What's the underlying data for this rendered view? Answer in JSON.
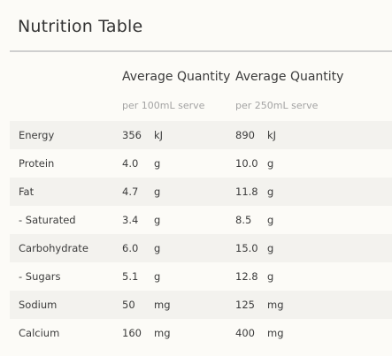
{
  "title": "Nutrition Table",
  "columns": [
    {
      "heading": "Average Quantity",
      "subheading": "per 100mL serve"
    },
    {
      "heading": "Average Quantity",
      "subheading": "per 250mL serve"
    }
  ],
  "rows": [
    {
      "name": "Energy",
      "per100": {
        "value": "356",
        "unit": "kJ"
      },
      "per250": {
        "value": "890",
        "unit": "kJ"
      }
    },
    {
      "name": "Protein",
      "per100": {
        "value": "4.0",
        "unit": "g"
      },
      "per250": {
        "value": "10.0",
        "unit": "g"
      }
    },
    {
      "name": "Fat",
      "per100": {
        "value": "4.7",
        "unit": "g"
      },
      "per250": {
        "value": "11.8",
        "unit": "g"
      }
    },
    {
      "name": "- Saturated",
      "per100": {
        "value": "3.4",
        "unit": "g"
      },
      "per250": {
        "value": "8.5",
        "unit": "g"
      }
    },
    {
      "name": "Carbohydrate",
      "per100": {
        "value": "6.0",
        "unit": "g"
      },
      "per250": {
        "value": "15.0",
        "unit": "g"
      }
    },
    {
      "name": "- Sugars",
      "per100": {
        "value": "5.1",
        "unit": "g"
      },
      "per250": {
        "value": "12.8",
        "unit": "g"
      }
    },
    {
      "name": "Sodium",
      "per100": {
        "value": "50",
        "unit": "mg"
      },
      "per250": {
        "value": "125",
        "unit": "mg"
      }
    },
    {
      "name": "Calcium",
      "per100": {
        "value": "160",
        "unit": "mg"
      },
      "per250": {
        "value": "400",
        "unit": "mg"
      }
    }
  ]
}
